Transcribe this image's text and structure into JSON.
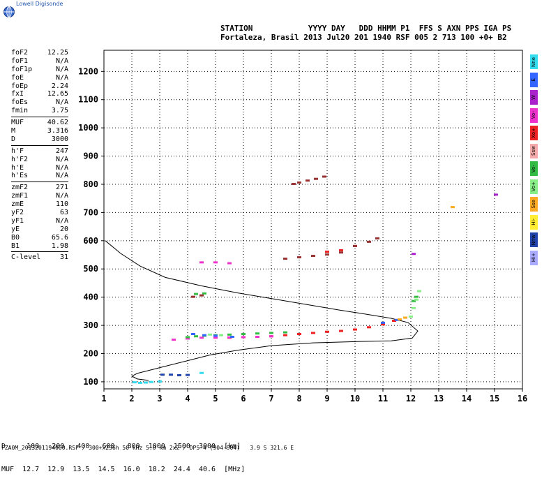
{
  "app": {
    "logo_text": "Lowell Digisonde"
  },
  "header": {
    "labels": "STATION            YYYY DAY   DDD HHMM P1  FFS S AXN PPS IGA PS",
    "values": "Fortaleza, Brasil 2013 Jul20 201 1940 RSF 005 2 713 100 +0+ B2"
  },
  "params": {
    "groups": [
      [
        {
          "name": "foF2",
          "value": "12.25"
        },
        {
          "name": "foF1",
          "value": "N/A"
        },
        {
          "name": "foF1p",
          "value": "N/A"
        },
        {
          "name": "foE",
          "value": "N/A"
        },
        {
          "name": "foEp",
          "value": "2.24"
        },
        {
          "name": "fxI",
          "value": "12.65"
        },
        {
          "name": "foEs",
          "value": "N/A"
        },
        {
          "name": "fmin",
          "value": "3.75"
        }
      ],
      [
        {
          "name": "MUF",
          "value": "40.62"
        },
        {
          "name": "M",
          "value": "3.316"
        },
        {
          "name": "D",
          "value": "3000"
        }
      ],
      [
        {
          "name": "h'F",
          "value": "247"
        },
        {
          "name": "h'F2",
          "value": "N/A"
        },
        {
          "name": "h'E",
          "value": "N/A"
        },
        {
          "name": "h'Es",
          "value": "N/A"
        }
      ],
      [
        {
          "name": "zmF2",
          "value": "271"
        },
        {
          "name": "zmF1",
          "value": "N/A"
        },
        {
          "name": "zmE",
          "value": "110"
        },
        {
          "name": "yF2",
          "value": "63"
        },
        {
          "name": "yF1",
          "value": "N/A"
        },
        {
          "name": "yE",
          "value": "20"
        },
        {
          "name": "B0",
          "value": "65.6"
        },
        {
          "name": "B1",
          "value": "1.98"
        }
      ],
      [
        {
          "name": "C-level",
          "value": "31"
        }
      ]
    ]
  },
  "legend": [
    {
      "label": "Nne",
      "color": "#33ddee"
    },
    {
      "label": "E",
      "color": "#3366ff"
    },
    {
      "label": "W",
      "color": "#aa22cc"
    },
    {
      "label": "Vo-",
      "color": "#ee33cc"
    },
    {
      "label": "Xo+",
      "color": "#ee2222"
    },
    {
      "label": "Ssw",
      "color": "#f4aaaa"
    },
    {
      "label": "Vo-",
      "color": "#33bb44"
    },
    {
      "label": "Vo+",
      "color": "#88ee88"
    },
    {
      "label": "Sse",
      "color": "#ffaa22"
    },
    {
      "label": "Hi-",
      "color": "#ffee33"
    },
    {
      "label": "Nnw",
      "color": "#2244aa"
    },
    {
      "label": "Hi+",
      "color": "#aaaaff"
    }
  ],
  "muf_table": {
    "d_line": "D     100   200   400   600   800  1000  1500  3000  [km]",
    "muf_line": "MUF  12.7  12.9  13.5  14.5  16.0  18.2  24.4  40.6  [MHz]"
  },
  "footer": "FZA0M_2013201194000.RSF / 300+x256h 50 kHz 5.0 km 2x2 / DPS-4 (904-904)   3.9 S 321.6 E",
  "chart_data": {
    "type": "scatter",
    "x_ticks": [
      1,
      2,
      3,
      4,
      5,
      6,
      7,
      8,
      9,
      10,
      11,
      12,
      13,
      14,
      15,
      16
    ],
    "y_ticks": [
      100,
      200,
      300,
      400,
      500,
      600,
      700,
      800,
      900,
      1000,
      1100,
      1200
    ],
    "xlim": [
      1,
      16
    ],
    "ylim": [
      75,
      1275
    ],
    "grid": true,
    "series": [
      {
        "color": "#000000",
        "kind": "line",
        "x": [
          1.05,
          1.6,
          2.3,
          3.2,
          4.5,
          5.8,
          7.0,
          8.2,
          9.4,
          10.5,
          11.3,
          11.9,
          12.25,
          12.05,
          11.3,
          10.2,
          8.5,
          7.0,
          5.8,
          4.8,
          4.0,
          3.2,
          2.6,
          2.2,
          2.0,
          2.2,
          2.6
        ],
        "y": [
          600,
          555,
          510,
          470,
          440,
          415,
          395,
          375,
          355,
          338,
          325,
          310,
          280,
          255,
          245,
          243,
          238,
          228,
          212,
          195,
          175,
          155,
          140,
          130,
          120,
          110,
          105
        ]
      },
      {
        "color": "#ee2222",
        "kind": "points",
        "x": [
          5.5,
          6.0,
          6.5,
          7.0,
          7.5,
          8.0,
          8.5,
          9.0,
          9.5,
          10.0,
          10.5,
          11.0,
          11.4,
          9.0,
          9.5,
          10.0
        ],
        "y": [
          255,
          257,
          258,
          260,
          264,
          268,
          272,
          276,
          279,
          284,
          292,
          302,
          315,
          560,
          565,
          580
        ]
      },
      {
        "color": "#ee33cc",
        "kind": "points",
        "x": [
          3.5,
          4.0,
          4.5,
          5.0,
          5.5,
          6.0,
          6.5,
          7.0,
          4.5,
          5.0,
          5.5
        ],
        "y": [
          248,
          252,
          255,
          255,
          256,
          257,
          258,
          260,
          522,
          522,
          519
        ]
      },
      {
        "color": "#33bb44",
        "kind": "points",
        "x": [
          4.0,
          4.3,
          4.6,
          5.0,
          5.5,
          6.0,
          6.5,
          7.0,
          7.5,
          4.3,
          4.6,
          12.1,
          12.2
        ],
        "y": [
          257,
          260,
          262,
          264,
          266,
          268,
          270,
          272,
          274,
          410,
          412,
          385,
          400
        ]
      },
      {
        "color": "#88ee88",
        "kind": "points",
        "x": [
          4.2,
          4.8,
          5.2,
          12.0,
          12.1,
          12.2,
          12.3
        ],
        "y": [
          268,
          266,
          264,
          330,
          360,
          390,
          420
        ]
      },
      {
        "color": "#33ddee",
        "kind": "points",
        "x": [
          2.1,
          2.3,
          2.5,
          2.7,
          3.0,
          4.5,
          11.8
        ],
        "y": [
          97,
          95,
          96,
          98,
          100,
          130,
          326
        ]
      },
      {
        "color": "#3366ff",
        "kind": "points",
        "x": [
          4.2,
          4.6,
          5.0,
          5.6,
          11.0,
          11.5
        ],
        "y": [
          268,
          264,
          262,
          258,
          308,
          318
        ]
      },
      {
        "color": "#ffaa22",
        "kind": "points",
        "x": [
          11.6,
          11.8,
          13.5
        ],
        "y": [
          320,
          326,
          718
        ]
      },
      {
        "color": "#aa22cc",
        "kind": "points",
        "x": [
          15.05,
          12.1
        ],
        "y": [
          762,
          552
        ]
      },
      {
        "color": "#2244aa",
        "kind": "points",
        "x": [
          3.1,
          3.4,
          3.7,
          4.0
        ],
        "y": [
          124,
          124,
          122,
          123
        ]
      },
      {
        "color": "#993333",
        "kind": "points",
        "x": [
          7.8,
          8.0,
          8.3,
          8.6,
          8.9,
          7.5,
          8.0,
          8.5,
          9.0,
          9.5,
          10.0,
          10.5,
          10.8,
          4.2,
          4.5
        ],
        "y": [
          800,
          805,
          812,
          818,
          826,
          535,
          540,
          545,
          550,
          557,
          580,
          595,
          607,
          400,
          405
        ]
      }
    ]
  }
}
